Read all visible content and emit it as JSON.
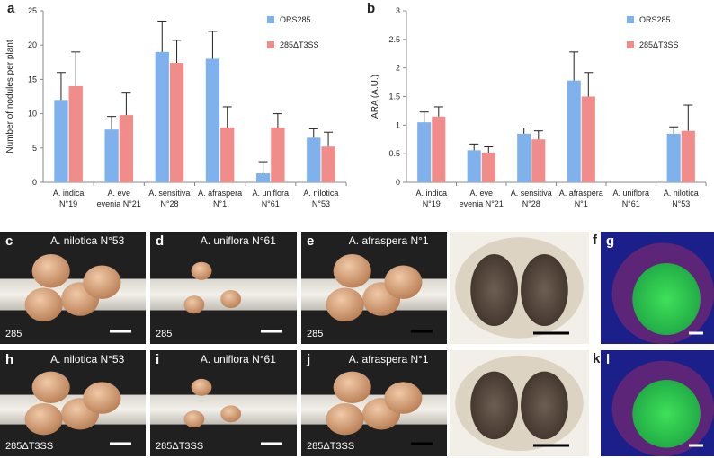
{
  "chart_data": [
    {
      "type": "bar",
      "panel_label": "a",
      "ylabel": "Number of nodules per plant",
      "categories": [
        [
          "A. indica",
          "N°19"
        ],
        [
          "A. eve",
          "evenia N°21"
        ],
        [
          "A. sensitiva",
          "N°28"
        ],
        [
          "A. afraspera",
          "N°1"
        ],
        [
          "A. uniflora",
          "N°61"
        ],
        [
          "A. nilotica",
          "N°53"
        ]
      ],
      "series": [
        {
          "name": "ORS285",
          "color": "#7fb2ec",
          "values": [
            12,
            7.7,
            19,
            18,
            1.3,
            6.5
          ],
          "errors": [
            4,
            1.9,
            4.5,
            4,
            1.7,
            1.3
          ]
        },
        {
          "name": "285ΔT3SS",
          "color": "#f08c8a",
          "values": [
            14,
            9.8,
            17.4,
            8,
            8,
            5.2
          ],
          "errors": [
            5,
            3.2,
            3.3,
            3,
            2,
            2.1
          ]
        }
      ],
      "ylim": [
        0,
        25
      ],
      "yticks": [
        0,
        5,
        10,
        15,
        20,
        25
      ],
      "legend": "upper right"
    },
    {
      "type": "bar",
      "panel_label": "b",
      "ylabel": "ARA (A.U.)",
      "categories": [
        [
          "A. indica",
          "N°19"
        ],
        [
          "A. eve",
          "evenia N°21"
        ],
        [
          "A. sensitiva",
          "N°28"
        ],
        [
          "A. afraspera",
          "N°1"
        ],
        [
          "A. uniflora",
          "N°61"
        ],
        [
          "A. nilotica",
          "N°53"
        ]
      ],
      "series": [
        {
          "name": "ORS285",
          "color": "#7fb2ec",
          "values": [
            1.05,
            0.56,
            0.85,
            1.78,
            null,
            0.85
          ],
          "errors": [
            0.18,
            0.11,
            0.1,
            0.5,
            null,
            0.12
          ]
        },
        {
          "name": "285ΔT3SS",
          "color": "#f08c8a",
          "values": [
            1.15,
            0.52,
            0.75,
            1.5,
            null,
            0.9
          ],
          "errors": [
            0.17,
            0.1,
            0.15,
            0.42,
            null,
            0.45
          ]
        }
      ],
      "ylim": [
        0,
        3
      ],
      "yticks": [
        0,
        0.5,
        1,
        1.5,
        2,
        2.5,
        3
      ],
      "legend": "upper right"
    }
  ],
  "panels": [
    {
      "letter": "c",
      "title": "A. nilotica N°53",
      "strain": "285"
    },
    {
      "letter": "d",
      "title": "A. uniflora  N°61",
      "strain": "285"
    },
    {
      "letter": "e",
      "title": "A. afraspera  N°1",
      "strain": "285"
    },
    {
      "letter": "f"
    },
    {
      "letter": "g"
    },
    {
      "letter": "h",
      "title": "A. nilotica N°53",
      "strain": "285ΔT3SS"
    },
    {
      "letter": "i",
      "title": "A. uniflora  N°61",
      "strain": "285ΔT3SS"
    },
    {
      "letter": "j",
      "title": "A. afraspera  N°1",
      "strain": "285ΔT3SS"
    },
    {
      "letter": "k"
    },
    {
      "letter": "l"
    }
  ]
}
